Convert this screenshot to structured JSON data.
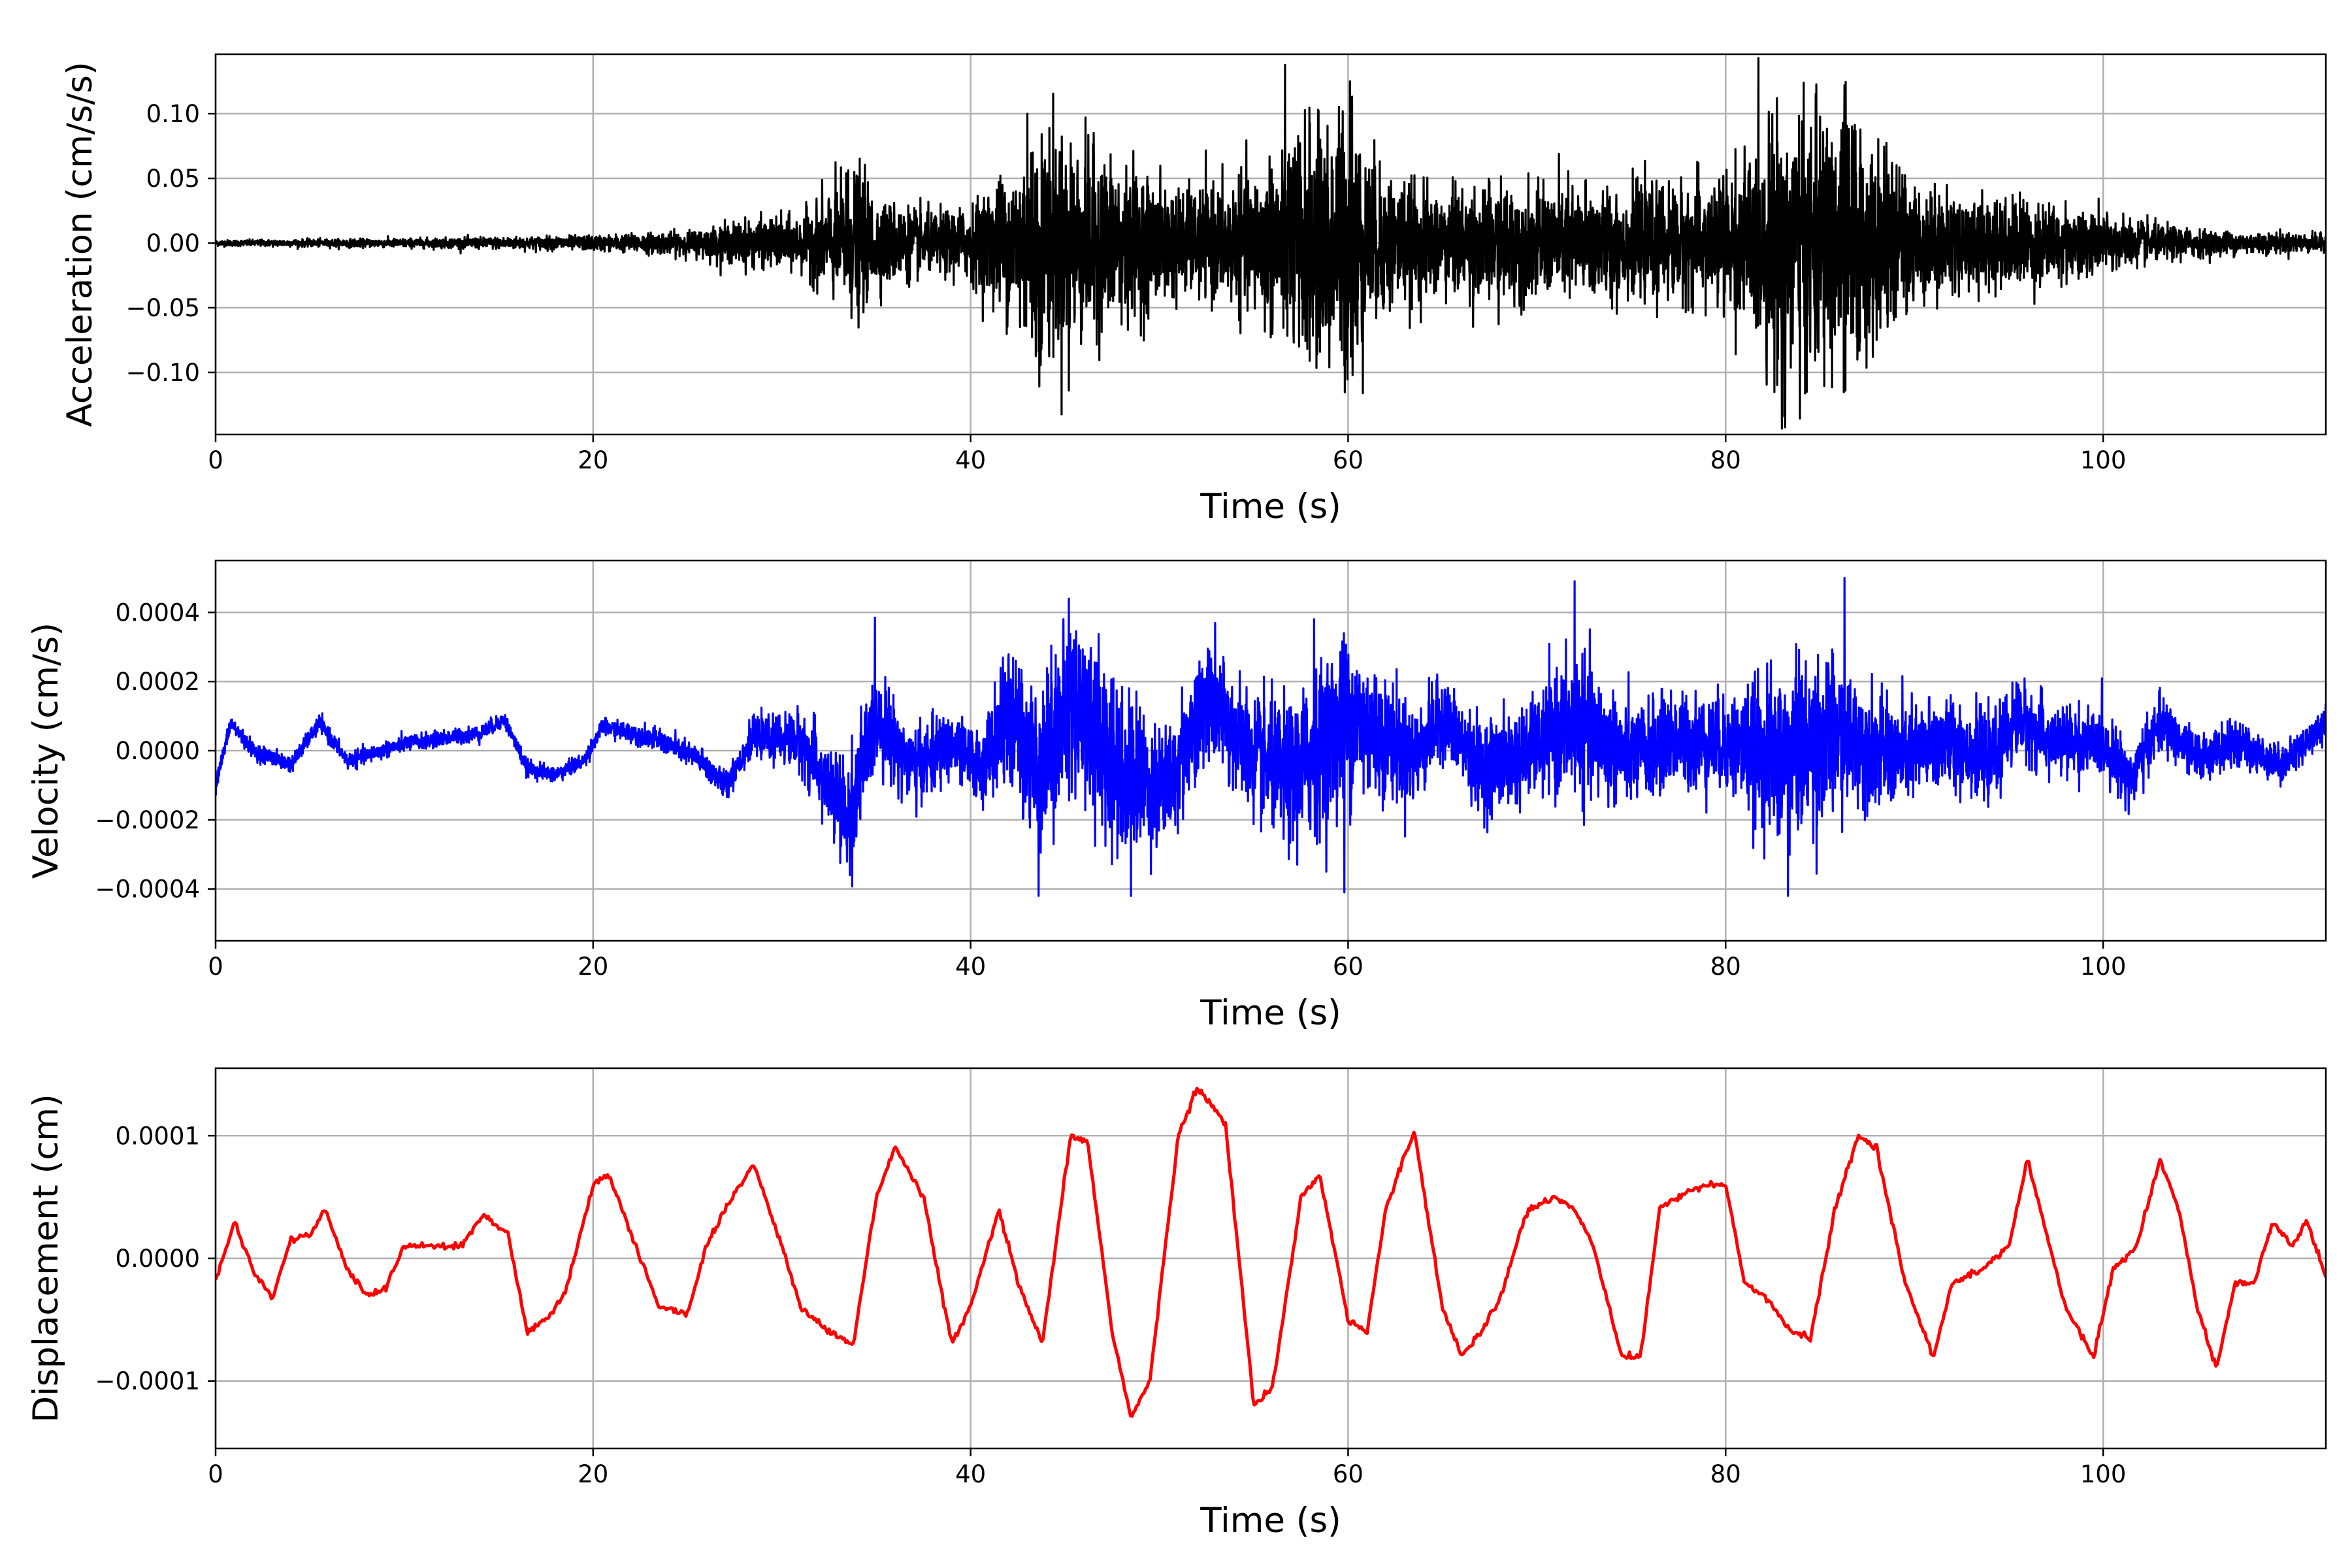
{
  "chart_data": [
    {
      "type": "line",
      "title": "",
      "xlabel": "Time (s)",
      "ylabel": "Acceleration (cm/s/s)",
      "xlim": [
        0,
        111.8
      ],
      "ylim": [
        -0.148,
        0.146
      ],
      "xticks": [
        0,
        20,
        40,
        60,
        80,
        100
      ],
      "xtick_labels": [
        "0",
        "20",
        "40",
        "60",
        "80",
        "100"
      ],
      "yticks": [
        0.1,
        0.05,
        0.0,
        -0.05,
        -0.1
      ],
      "ytick_labels": [
        "0.10",
        "0.05",
        "0.00",
        "−0.05",
        "−0.10"
      ],
      "grid": true,
      "color": "#000000",
      "envelope": {
        "t": [
          0,
          10,
          20,
          25,
          28,
          31,
          33,
          34,
          35,
          38,
          40,
          42,
          43.5,
          45,
          47,
          50,
          52,
          55,
          57,
          58,
          59,
          60,
          61,
          63,
          65,
          68,
          70,
          72,
          75,
          78,
          80,
          82,
          83,
          85,
          86.3,
          88,
          90,
          93,
          96,
          100,
          103,
          106,
          111.8
        ],
        "amp": [
          0.002,
          0.003,
          0.005,
          0.008,
          0.015,
          0.018,
          0.04,
          0.05,
          0.03,
          0.02,
          0.025,
          0.05,
          0.08,
          0.07,
          0.06,
          0.04,
          0.035,
          0.045,
          0.075,
          0.08,
          0.075,
          0.1,
          0.06,
          0.04,
          0.035,
          0.04,
          0.035,
          0.04,
          0.035,
          0.04,
          0.045,
          0.07,
          0.095,
          0.08,
          0.1,
          0.06,
          0.04,
          0.03,
          0.03,
          0.02,
          0.012,
          0.008,
          0.006
        ]
      },
      "spikes": [
        {
          "t": 33.4,
          "y": 0.054
        },
        {
          "t": 34.0,
          "y": -0.048
        },
        {
          "t": 43.0,
          "y": 0.1
        },
        {
          "t": 43.6,
          "y": -0.084
        },
        {
          "t": 45.2,
          "y": -0.114
        },
        {
          "t": 45.3,
          "y": 0.077
        },
        {
          "t": 48.0,
          "y": -0.063
        },
        {
          "t": 57.4,
          "y": -0.08
        },
        {
          "t": 59.0,
          "y": -0.096
        },
        {
          "t": 60.1,
          "y": 0.125
        },
        {
          "t": 60.5,
          "y": -0.078
        },
        {
          "t": 83.1,
          "y": -0.134
        },
        {
          "t": 84.3,
          "y": -0.115
        },
        {
          "t": 86.3,
          "y": 0.122
        },
        {
          "t": 87.8,
          "y": -0.088
        }
      ]
    },
    {
      "type": "line",
      "title": "",
      "xlabel": "Time (s)",
      "ylabel": "Velocity (cm/s)",
      "xlim": [
        0,
        111.8
      ],
      "ylim": [
        -0.00055,
        0.00055
      ],
      "xticks": [
        0,
        20,
        40,
        60,
        80,
        100
      ],
      "xtick_labels": [
        "0",
        "20",
        "40",
        "60",
        "80",
        "100"
      ],
      "yticks": [
        0.0004,
        0.0002,
        0.0,
        -0.0002,
        -0.0004
      ],
      "ytick_labels": [
        "0.0004",
        "0.0002",
        "0.0000",
        "−0.0002",
        "−0.0004"
      ],
      "grid": true,
      "color": "#0000ff",
      "trend": {
        "t": [
          0,
          0.8,
          2,
          4,
          5.5,
          7,
          10,
          14,
          15.3,
          16.5,
          18,
          19.5,
          20.5,
          23,
          25.5,
          27,
          28.5,
          31,
          33.5,
          35,
          37,
          39,
          40.5,
          42,
          43.5,
          45.5,
          48,
          50.5,
          52.5,
          55,
          57,
          60,
          62,
          63.5,
          65,
          67,
          69,
          72,
          75,
          77,
          80,
          83,
          86,
          89,
          92,
          94,
          95.5,
          97,
          100,
          101.5,
          103,
          105,
          107,
          109.5,
          111.8
        ],
        "val": [
          -0.0001,
          8e-05,
          0.0,
          -4e-05,
          8e-05,
          -3e-05,
          2e-05,
          5e-05,
          9e-05,
          -5e-05,
          -7e-05,
          -3e-05,
          7e-05,
          4e-05,
          -2e-05,
          -0.0001,
          4e-05,
          3e-05,
          -0.0002,
          0.0001,
          -5e-05,
          2e-05,
          -5e-05,
          0.0001,
          -5e-05,
          0.00015,
          -7e-05,
          -0.0001,
          0.00015,
          -2e-05,
          -8e-05,
          0.0001,
          4e-05,
          -2e-05,
          0.0001,
          -5e-05,
          -2e-05,
          8e-05,
          -2e-05,
          3e-05,
          2e-05,
          -2e-05,
          5e-05,
          -2e-05,
          3e-05,
          -3e-05,
          0.0001,
          3e-05,
          2e-05,
          -8e-05,
          8e-05,
          -2e-05,
          2e-05,
          -4e-05,
          8e-05,
          0.0
        ]
      },
      "envelope": {
        "t": [
          0,
          10,
          20,
          25,
          28,
          30,
          32,
          34,
          36,
          40,
          42,
          44,
          46,
          48,
          50,
          52,
          55,
          58,
          60,
          62,
          65,
          68,
          70,
          72,
          75,
          78,
          80,
          83,
          85,
          87,
          90,
          95,
          100,
          105,
          111.8
        ],
        "amp": [
          2e-05,
          2e-05,
          2e-05,
          3e-05,
          4e-05,
          6e-05,
          0.0001,
          0.00015,
          0.0001,
          8e-05,
          0.00015,
          0.00022,
          0.00022,
          0.00022,
          0.00015,
          0.00015,
          0.00015,
          0.0002,
          0.00022,
          0.00015,
          0.0001,
          0.00012,
          0.00012,
          0.00018,
          0.00012,
          0.00012,
          0.00012,
          0.00022,
          0.00022,
          0.00015,
          0.00012,
          0.0001,
          8e-05,
          6e-05,
          4e-05
        ]
      },
      "spikes": [
        {
          "t": 45.2,
          "y": 0.00044
        },
        {
          "t": 43.6,
          "y": -0.00042
        },
        {
          "t": 48.5,
          "y": -0.00042
        },
        {
          "t": 59.8,
          "y": -0.00041
        },
        {
          "t": 72.0,
          "y": 0.00049
        },
        {
          "t": 86.3,
          "y": 0.0005
        },
        {
          "t": 83.3,
          "y": -0.00042
        },
        {
          "t": 33.6,
          "y": -0.00036
        },
        {
          "t": 58.2,
          "y": 0.00038
        }
      ]
    },
    {
      "type": "line",
      "title": "",
      "xlabel": "Time (s)",
      "ylabel": "Displacement (cm)",
      "xlim": [
        0,
        111.8
      ],
      "ylim": [
        -0.000155,
        0.000155
      ],
      "xticks": [
        0,
        20,
        40,
        60,
        80,
        100
      ],
      "xtick_labels": [
        "0",
        "20",
        "40",
        "60",
        "80",
        "100"
      ],
      "yticks": [
        0.0001,
        0.0,
        -0.0001
      ],
      "ytick_labels": [
        "0.0001",
        "0.0000",
        "−0.0001"
      ],
      "grid": true,
      "color": "#ff0000",
      "x": [
        0,
        1.0,
        2.0,
        3.0,
        4.0,
        5.0,
        5.8,
        7.0,
        8.0,
        9.0,
        10.0,
        11.0,
        12.0,
        13.0,
        14.2,
        15.5,
        16.5,
        17.5,
        18.5,
        20.0,
        20.8,
        22.0,
        23.5,
        25.0,
        26.0,
        27.0,
        28.5,
        30.0,
        31.0,
        32.5,
        33.8,
        35.0,
        36.0,
        37.5,
        39.0,
        40.0,
        41.5,
        42.5,
        43.8,
        45.3,
        46.2,
        47.5,
        48.5,
        49.5,
        51.0,
        52.0,
        53.5,
        55.0,
        56.0,
        57.5,
        58.5,
        60.0,
        61.0,
        62.0,
        63.5,
        65.0,
        66.0,
        67.0,
        68.0,
        69.5,
        71.0,
        72.0,
        73.0,
        74.5,
        75.5,
        76.5,
        78.0,
        79.0,
        80.0,
        81.0,
        82.0,
        83.5,
        84.5,
        85.8,
        87.0,
        88.0,
        89.5,
        91.0,
        92.0,
        93.5,
        95.0,
        96.0,
        97.0,
        98.0,
        99.5,
        100.5,
        101.8,
        103.0,
        104.0,
        105.0,
        106.0,
        107.0,
        108.0,
        109.0,
        110.0,
        110.8,
        111.8
      ],
      "y": [
        -1.8e-05,
        3e-05,
        -1e-05,
        -3.2e-05,
        1.5e-05,
        2e-05,
        4e-05,
        -1e-05,
        -3e-05,
        -2.5e-05,
        1e-05,
        1e-05,
        1e-05,
        1e-05,
        3.5e-05,
        2e-05,
        -6e-05,
        -5e-05,
        -3e-05,
        6e-05,
        7e-05,
        2e-05,
        -4e-05,
        -4.5e-05,
        1e-05,
        4e-05,
        7.7e-05,
        1e-05,
        -4e-05,
        -6e-05,
        -7e-05,
        5e-05,
        9e-05,
        5e-05,
        -7e-05,
        -4e-05,
        4e-05,
        -2e-05,
        -7e-05,
        0.0001,
        9.5e-05,
        -6e-05,
        -0.00013,
        -0.0001,
        0.0001,
        0.00014,
        0.00011,
        -0.00012,
        -0.000105,
        5e-05,
        6.8e-05,
        -5e-05,
        -6e-05,
        4e-05,
        0.000105,
        -4e-05,
        -8e-05,
        -6e-05,
        -3.5e-05,
        4e-05,
        5e-05,
        4e-05,
        1e-05,
        -8e-05,
        -8e-05,
        4e-05,
        5.5e-05,
        6e-05,
        6e-05,
        -2e-05,
        -3e-05,
        -6e-05,
        -6.5e-05,
        4e-05,
        0.0001,
        9e-05,
        -2e-05,
        -8e-05,
        -2e-05,
        -1e-05,
        1e-05,
        8e-05,
        2e-05,
        -4e-05,
        -8e-05,
        -1e-05,
        1e-05,
        8e-05,
        4e-05,
        -4e-05,
        -9e-05,
        -2e-05,
        -2e-05,
        3e-05,
        1e-05,
        3e-05,
        -1.5e-05
      ]
    }
  ]
}
